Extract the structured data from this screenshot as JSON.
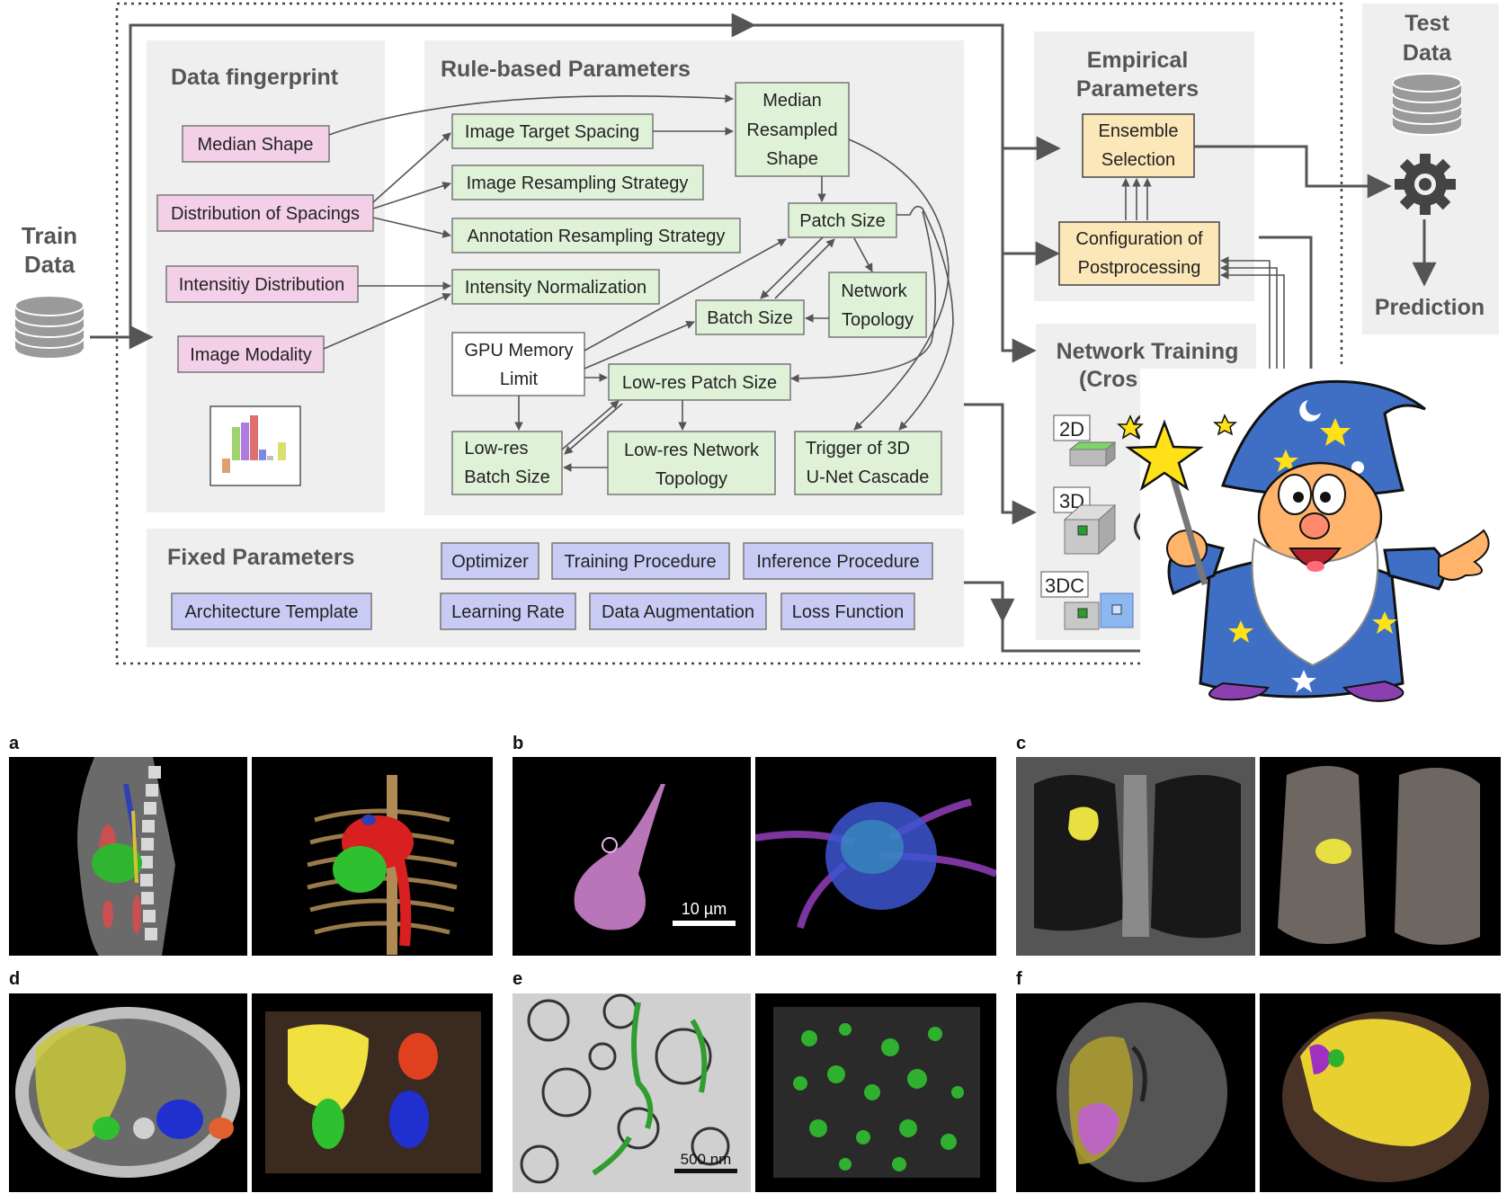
{
  "train_data": {
    "line1": "Train",
    "line2": "Data"
  },
  "test_data": {
    "line1": "Test",
    "line2": "Data"
  },
  "prediction": "Prediction",
  "data_fingerprint": {
    "title": "Data fingerprint",
    "items": [
      "Median Shape",
      "Distribution of Spacings",
      "Intensitiy Distribution",
      "Image Modality"
    ]
  },
  "rule_based": {
    "title": "Rule-based Parameters",
    "image_target_spacing": "Image Target Spacing",
    "image_resampling_strategy": "Image Resampling Strategy",
    "annotation_resampling_strategy": "Annotation Resampling Strategy",
    "intensity_normalization": "Intensity Normalization",
    "median_resampled_shape": [
      "Median",
      "Resampled",
      "Shape"
    ],
    "patch_size": "Patch Size",
    "network_topology": [
      "Network",
      "Topology"
    ],
    "batch_size": "Batch Size",
    "gpu_memory_limit": [
      "GPU Memory",
      "Limit"
    ],
    "low_res_patch_size": "Low-res Patch Size",
    "low_res_batch_size": [
      "Low-res",
      "Batch Size"
    ],
    "low_res_network_topology": [
      "Low-res Network",
      "Topology"
    ],
    "trigger_3d_cascade": [
      "Trigger of 3D",
      "U-Net Cascade"
    ]
  },
  "fixed": {
    "title": "Fixed Parameters",
    "items": [
      "Architecture Template",
      "Optimizer",
      "Training Procedure",
      "Inference Procedure",
      "Learning Rate",
      "Data Augmentation",
      "Loss Function"
    ]
  },
  "empirical": {
    "title": [
      "Empirical",
      "Parameters"
    ],
    "ensemble_selection": [
      "Ensemble",
      "Selection"
    ],
    "configuration_postprocessing": [
      "Configuration of",
      "Postprocessing"
    ]
  },
  "network_training": {
    "title": [
      "Network Training",
      "(Cros"
    ],
    "configs": [
      "2D",
      "3D",
      "3DC"
    ]
  },
  "panels": {
    "labels": [
      "a",
      "b",
      "c",
      "d",
      "e",
      "f"
    ],
    "scalebar_b": "10 µm",
    "scalebar_e": "500 nm"
  },
  "colors": {
    "pink": "#f3d0e8",
    "green": "#dff2d8",
    "blue": "#c8ccf5",
    "yellow": "#fbe7b8",
    "panel_gray": "#efefef",
    "text_gray": "#555555"
  },
  "icons": [
    "database-icon",
    "gear-icon",
    "histogram-icon",
    "wizard-illustration"
  ]
}
